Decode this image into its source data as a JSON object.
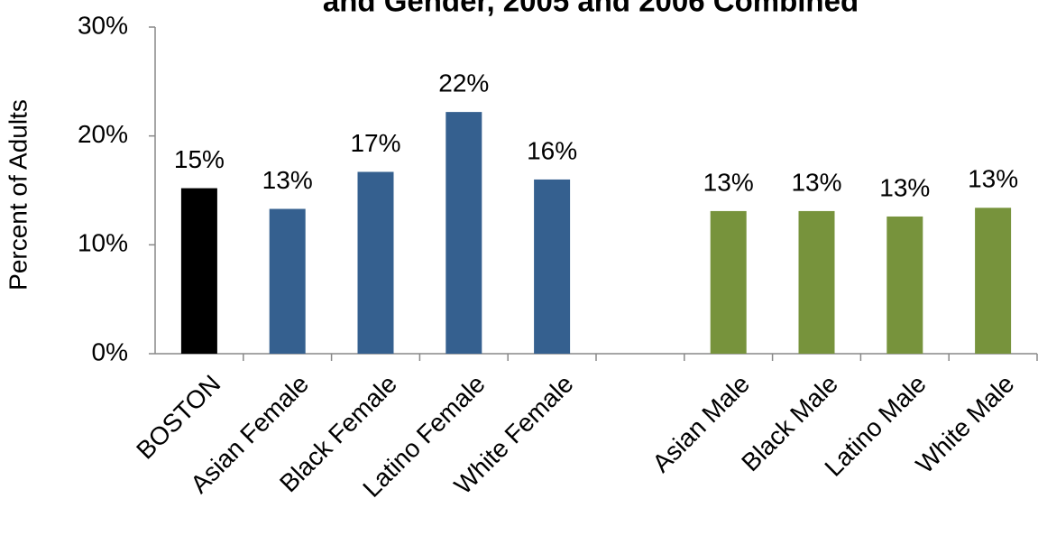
{
  "chart_data": {
    "type": "bar",
    "title": "and Gender, 2005 and 2006 Combined",
    "y_label": "Percent of Adults",
    "categories": [
      "BOSTON",
      "Asian Female",
      "Black Female",
      "Latino Female",
      "White Female",
      null,
      "Asian Male",
      "Black Male",
      "Latino Male",
      "White Male"
    ],
    "values": [
      15.2,
      13.3,
      16.7,
      22.2,
      16.0,
      null,
      13.1,
      13.1,
      12.6,
      13.4
    ],
    "value_labels": [
      "15%",
      "13%",
      "17%",
      "22%",
      "16%",
      null,
      "13%",
      "13%",
      "13%",
      "13%"
    ],
    "colors": [
      "#000000",
      "#35608f",
      "#35608f",
      "#35608f",
      "#35608f",
      null,
      "#77933c",
      "#77933c",
      "#77933c",
      "#77933c"
    ],
    "ylim": [
      0,
      30
    ],
    "yticks": [
      {
        "value": 0,
        "label": "0%"
      },
      {
        "value": 10,
        "label": "10%"
      },
      {
        "value": 20,
        "label": "20%"
      },
      {
        "value": 30,
        "label": "30%"
      }
    ],
    "grid": false
  }
}
